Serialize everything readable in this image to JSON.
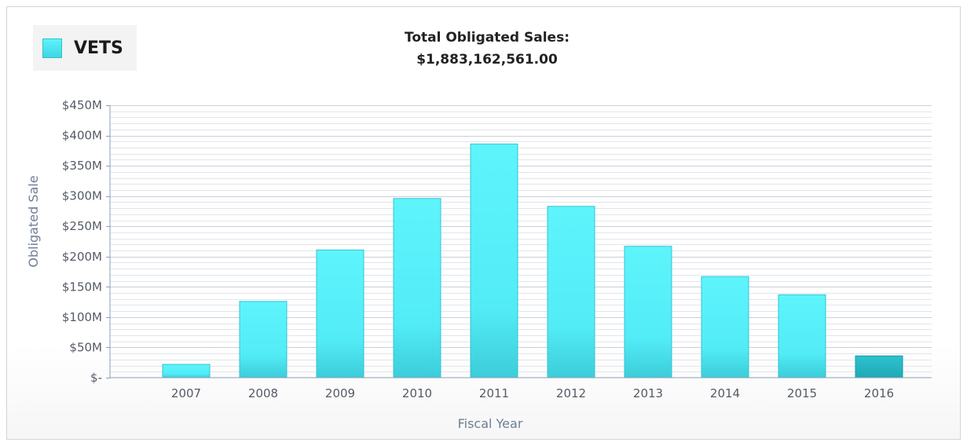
{
  "legend": {
    "label": "VETS",
    "color": "#55f1fb"
  },
  "header": {
    "title_line1": "Total Obligated Sales:",
    "title_line2": "$1,883,162,561.00"
  },
  "chart_data": {
    "type": "bar",
    "categories": [
      "2007",
      "2008",
      "2009",
      "2010",
      "2011",
      "2012",
      "2013",
      "2014",
      "2015",
      "2016"
    ],
    "series": [
      {
        "name": "VETS",
        "values": [
          22,
          126,
          211,
          296,
          386,
          283,
          217,
          167,
          137,
          36
        ]
      }
    ],
    "highlight_index": 9,
    "colors": {
      "bar": "#55f1fb",
      "bar_highlight": "#24b8c6",
      "grid": "#d9dde3",
      "axis": "#8aa0b8"
    },
    "xlabel": "Fiscal Year",
    "ylabel": "Obligated Sale",
    "ylim": [
      0,
      450
    ],
    "y_unit": "millions USD",
    "yticks": [
      0,
      50,
      100,
      150,
      200,
      250,
      300,
      350,
      400,
      450
    ],
    "ytick_labels": [
      "$-",
      "$50M",
      "$100M",
      "$150M",
      "$200M",
      "$250M",
      "$300M",
      "$350M",
      "$400M",
      "$450M"
    ],
    "grid": true,
    "legend_position": "top-left"
  }
}
